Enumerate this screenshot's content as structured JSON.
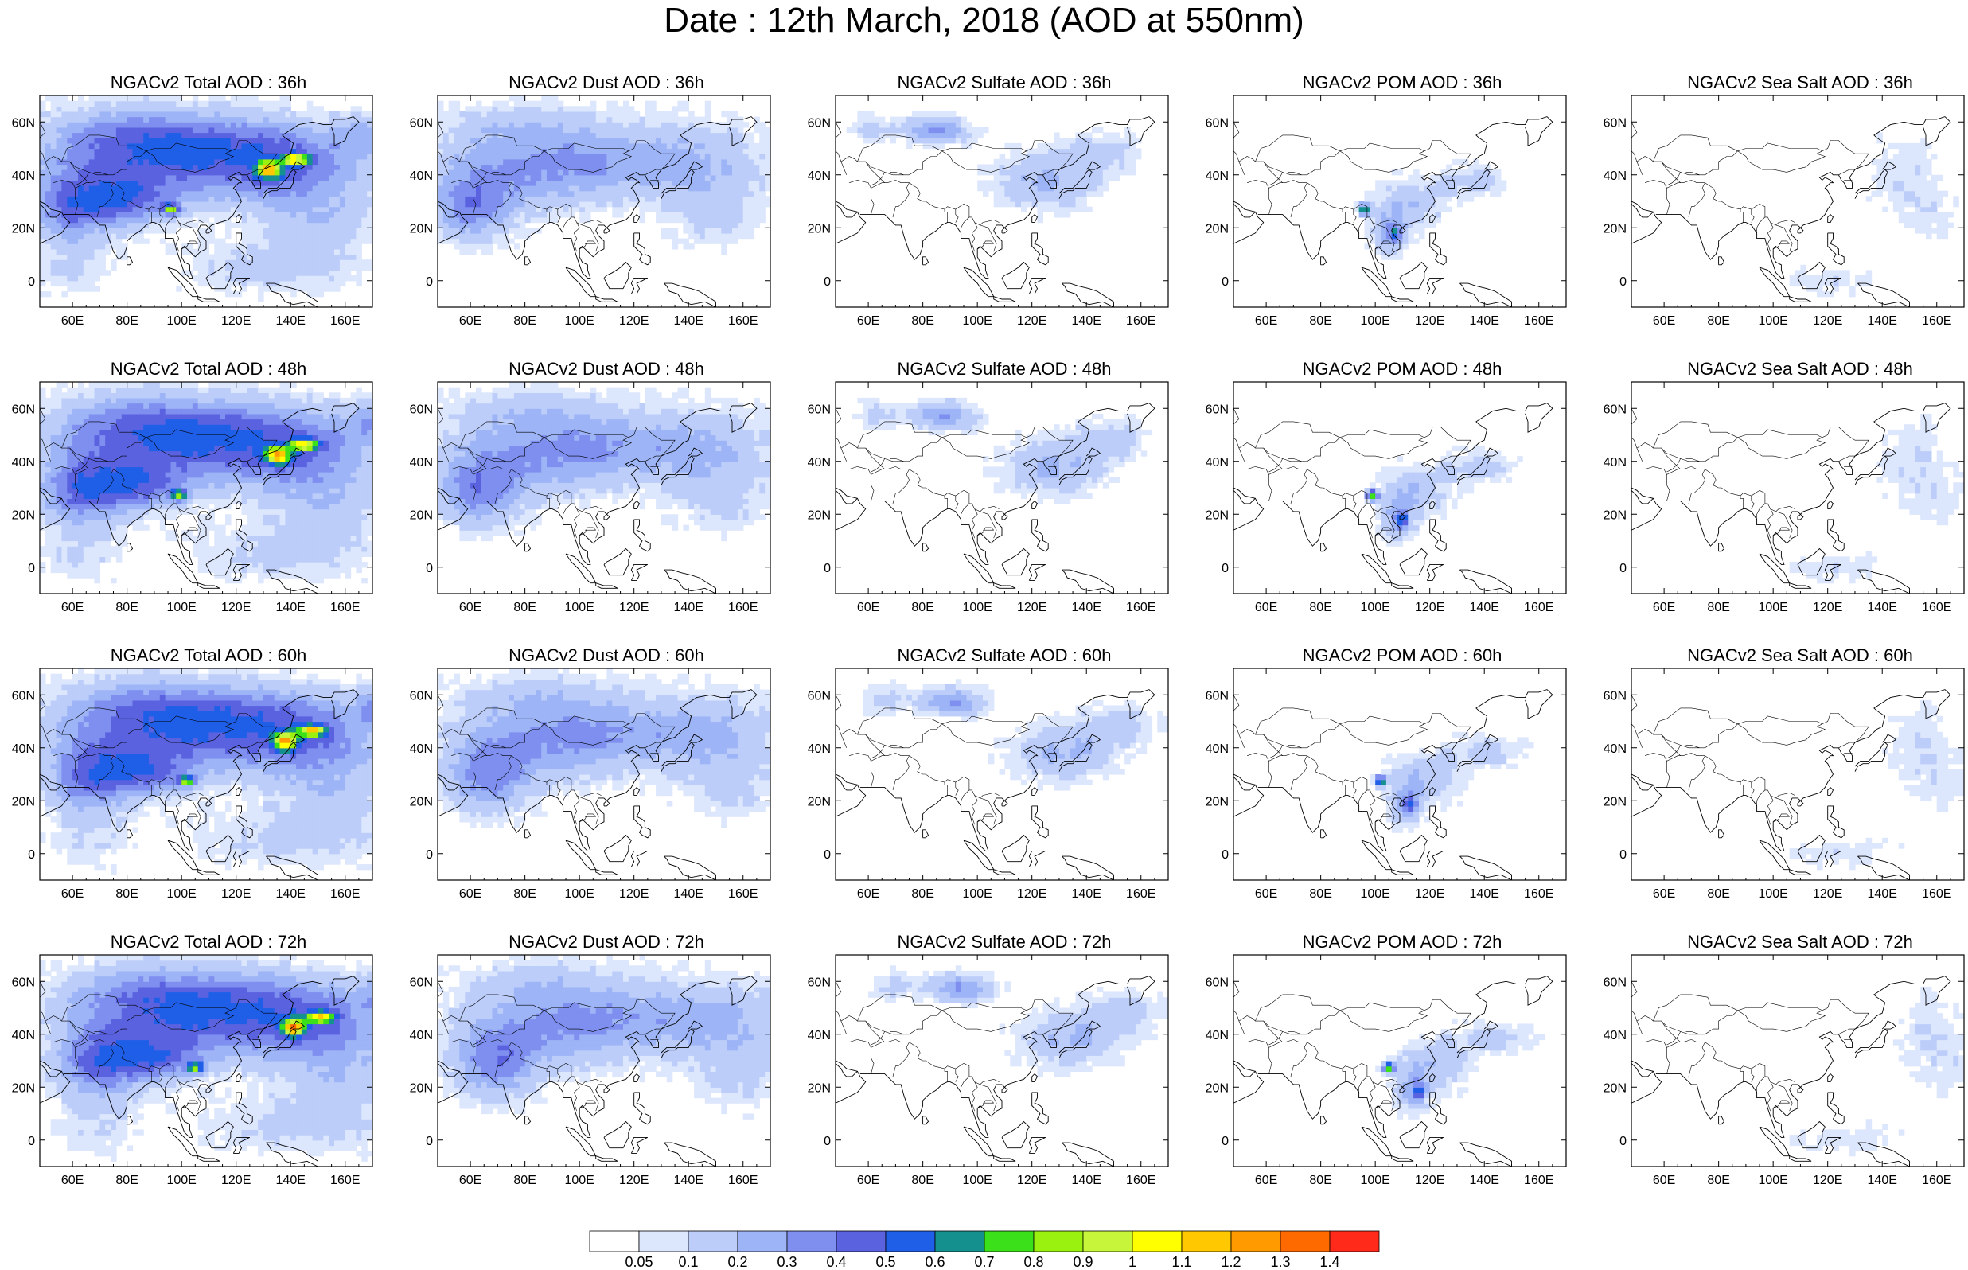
{
  "title": "Date : 12th March, 2018 (AOD at 550nm)",
  "panels": [
    {
      "title": "NGACv2 Total AOD : 36h",
      "species": "total",
      "hour": 36
    },
    {
      "title": "NGACv2 Dust AOD : 36h",
      "species": "dust",
      "hour": 36
    },
    {
      "title": "NGACv2 Sulfate AOD : 36h",
      "species": "sulfate",
      "hour": 36
    },
    {
      "title": "NGACv2 POM AOD : 36h",
      "species": "pom",
      "hour": 36
    },
    {
      "title": "NGACv2 Sea Salt AOD : 36h",
      "species": "seasalt",
      "hour": 36
    },
    {
      "title": "NGACv2 Total AOD : 48h",
      "species": "total",
      "hour": 48
    },
    {
      "title": "NGACv2 Dust AOD : 48h",
      "species": "dust",
      "hour": 48
    },
    {
      "title": "NGACv2 Sulfate AOD : 48h",
      "species": "sulfate",
      "hour": 48
    },
    {
      "title": "NGACv2 POM AOD : 48h",
      "species": "pom",
      "hour": 48
    },
    {
      "title": "NGACv2 Sea Salt AOD : 48h",
      "species": "seasalt",
      "hour": 48
    },
    {
      "title": "NGACv2 Total AOD : 60h",
      "species": "total",
      "hour": 60
    },
    {
      "title": "NGACv2 Dust AOD : 60h",
      "species": "dust",
      "hour": 60
    },
    {
      "title": "NGACv2 Sulfate AOD : 60h",
      "species": "sulfate",
      "hour": 60
    },
    {
      "title": "NGACv2 POM AOD : 60h",
      "species": "pom",
      "hour": 60
    },
    {
      "title": "NGACv2 Sea Salt AOD : 60h",
      "species": "seasalt",
      "hour": 60
    },
    {
      "title": "NGACv2 Total AOD : 72h",
      "species": "total",
      "hour": 72
    },
    {
      "title": "NGACv2 Dust AOD : 72h",
      "species": "dust",
      "hour": 72
    },
    {
      "title": "NGACv2 Sulfate AOD : 72h",
      "species": "sulfate",
      "hour": 72
    },
    {
      "title": "NGACv2 POM AOD : 72h",
      "species": "pom",
      "hour": 72
    },
    {
      "title": "NGACv2 Sea Salt  AOD : 72h",
      "species": "seasalt",
      "hour": 72
    }
  ],
  "lon_ticks": [
    "60E",
    "80E",
    "100E",
    "120E",
    "140E",
    "160E"
  ],
  "lat_ticks": [
    "60N",
    "40N",
    "20N",
    "0"
  ],
  "lon_tick_values": [
    60,
    80,
    100,
    120,
    140,
    160
  ],
  "lat_tick_values": [
    60,
    40,
    20,
    0
  ],
  "map_extent": {
    "lon": [
      48,
      170
    ],
    "lat": [
      -10,
      70
    ]
  },
  "colorbar": {
    "labels": [
      "0.05",
      "0.1",
      "0.2",
      "0.3",
      "0.4",
      "0.5",
      "0.6",
      "0.7",
      "0.8",
      "0.9",
      "1",
      "1.1",
      "1.2",
      "1.3",
      "1.4"
    ],
    "colors": [
      "#ffffff",
      "#dce6fc",
      "#bccdfa",
      "#9db4f6",
      "#7e8ff0",
      "#5a62e0",
      "#1f5fe8",
      "#14918f",
      "#3be01b",
      "#9af00f",
      "#c6f53a",
      "#ffff00",
      "#ffc800",
      "#ff9b00",
      "#ff6a00",
      "#ff2a1a"
    ]
  }
}
